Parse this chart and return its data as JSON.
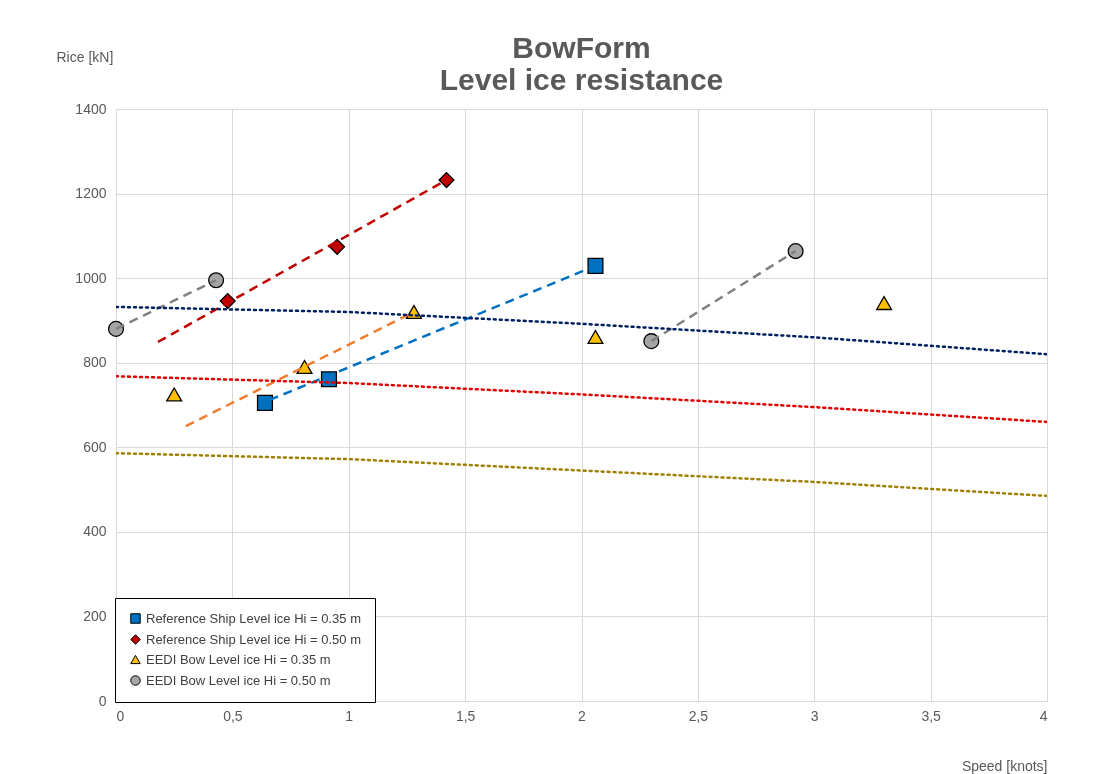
{
  "chart_data": {
    "type": "scatter",
    "title": [
      "BowForm",
      "Level ice resistance"
    ],
    "xlabel": "Speed [knots]",
    "ylabel": "Rice [kN]",
    "xlim": [
      0,
      4
    ],
    "xticks": [
      {
        "value": 0,
        "label": "0"
      },
      {
        "value": 0.5,
        "label": "0,5"
      },
      {
        "value": 1,
        "label": "1"
      },
      {
        "value": 1.5,
        "label": "1,5"
      },
      {
        "value": 2,
        "label": "2"
      },
      {
        "value": 2.5,
        "label": "2,5"
      },
      {
        "value": 3,
        "label": "3"
      },
      {
        "value": 3.5,
        "label": "3,5"
      },
      {
        "value": 4,
        "label": "4"
      }
    ],
    "ylim": [
      0,
      1400
    ],
    "yticks": [
      0,
      200,
      400,
      600,
      800,
      1000,
      1200,
      1400
    ],
    "grid": true,
    "legend": "bottom left",
    "series": [
      {
        "name": "Reference Ship Level ice Hi = 0.35 m",
        "color": "#0070c0",
        "marker": "square",
        "x": [
          0.64,
          0.915,
          2.06
        ],
        "values": [
          705,
          761,
          1029
        ]
      },
      {
        "name": "Reference Ship Level ice Hi = 0.50 m",
        "color": "#c00000",
        "marker": "diamond",
        "x": [
          0.48,
          0.95,
          1.42
        ],
        "values": [
          946,
          1074,
          1232
        ]
      },
      {
        "name": "EEDI Bow Level ice Hi = 0.35 m",
        "color": "#ffc000",
        "marker": "triangle",
        "x": [
          0.25,
          0.81,
          1.28,
          2.06,
          3.3
        ],
        "values": [
          725,
          790,
          920,
          861,
          941
        ]
      },
      {
        "name": "EEDI Bow Level ice Hi = 0.50 m",
        "color": "#a5a5a5",
        "marker": "circle",
        "x": [
          0,
          0.43,
          2.3,
          2.92
        ],
        "values": [
          880,
          995,
          851,
          1064
        ]
      },
      {
        "type": "line",
        "color": "#0070c0",
        "line_style": "dashed",
        "x": [
          0.66,
          2.06
        ],
        "values": [
          712,
          1029
        ]
      },
      {
        "type": "line",
        "color": "#c00000",
        "line_style": "dashed",
        "x": [
          0.18,
          1.42
        ],
        "values": [
          849,
          1232
        ]
      },
      {
        "type": "line",
        "color": "#ed7d31",
        "line_style": "dashed",
        "x": [
          0.3,
          1.28
        ],
        "values": [
          650,
          920
        ]
      },
      {
        "type": "line",
        "color": "#808080",
        "line_style": "dashed",
        "x": [
          0,
          0.43
        ],
        "values": [
          880,
          995
        ]
      },
      {
        "type": "line",
        "color": "#808080",
        "line_style": "dashed",
        "x": [
          2.3,
          2.92
        ],
        "values": [
          851,
          1064
        ]
      },
      {
        "type": "line",
        "color": "#002060",
        "line_style": "dotted",
        "x": [
          0,
          1,
          2,
          3,
          4
        ],
        "values": [
          932,
          920,
          892,
          860,
          820
        ]
      },
      {
        "type": "line",
        "color": "#e00000",
        "line_style": "dotted",
        "x": [
          0,
          1,
          2,
          3,
          4
        ],
        "values": [
          768,
          752,
          725,
          695,
          660
        ]
      },
      {
        "type": "line",
        "color": "#a08000",
        "line_style": "dotted",
        "x": [
          0,
          1,
          2,
          3,
          4
        ],
        "values": [
          586,
          572,
          545,
          518,
          485
        ]
      }
    ]
  }
}
